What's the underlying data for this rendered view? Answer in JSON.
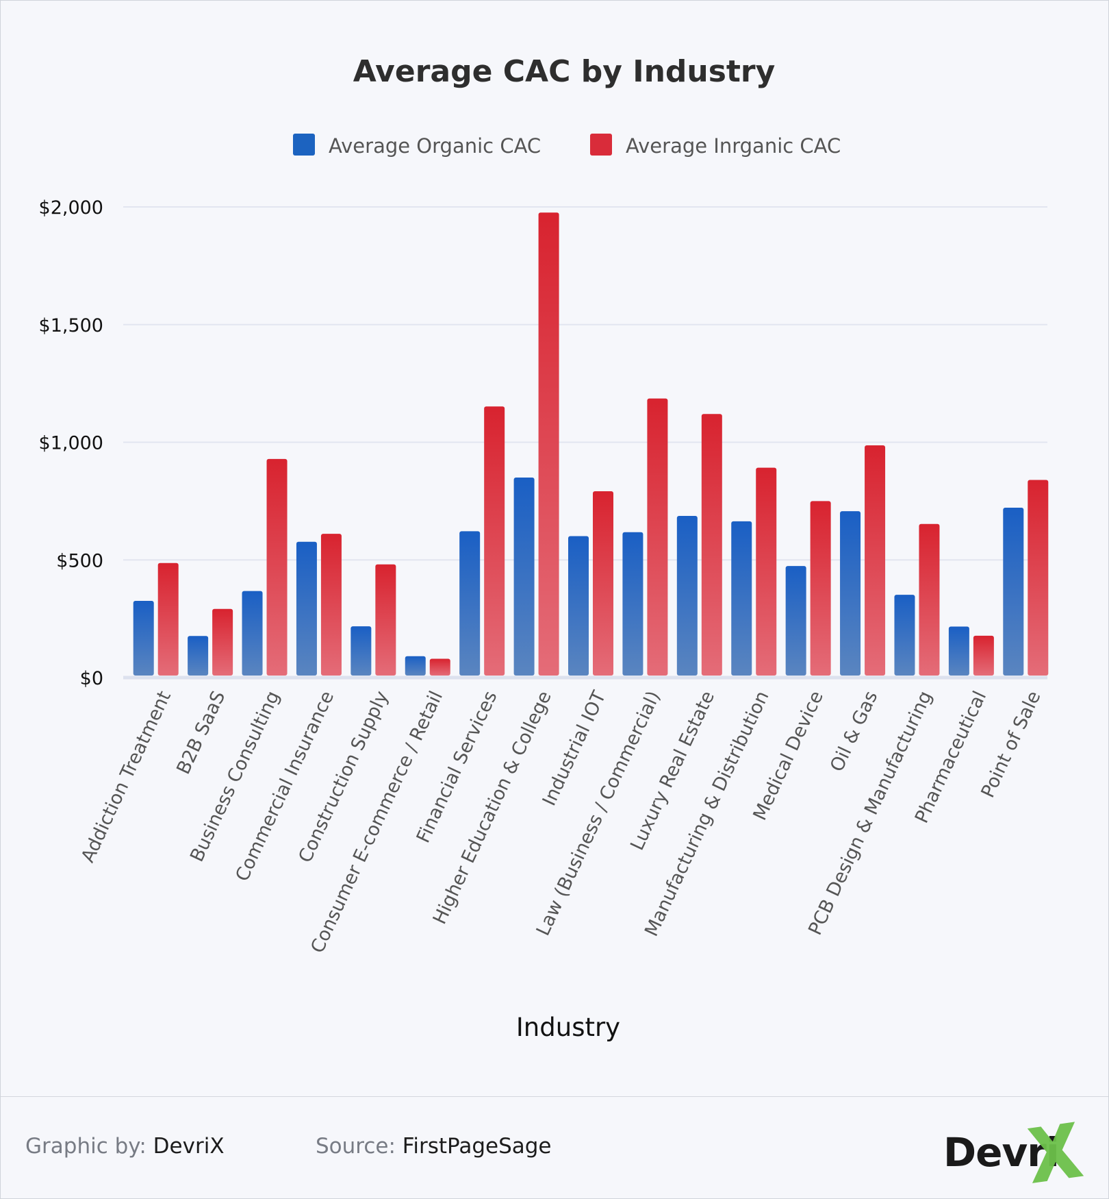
{
  "chart_data": {
    "type": "bar",
    "title": "Average CAC by Industry",
    "xlabel": "Industry",
    "ylabel": "",
    "ylim": [
      0,
      2000
    ],
    "yticks": [
      {
        "value": 0,
        "label": "$0"
      },
      {
        "value": 500,
        "label": "$500"
      },
      {
        "value": 1000,
        "label": "$1,000"
      },
      {
        "value": 1500,
        "label": "$1,500"
      },
      {
        "value": 2000,
        "label": "$2,000"
      }
    ],
    "legend_position": "top-center",
    "grid": true,
    "categories": [
      "Addiction Treatment",
      "B2B SaaS",
      "Business Consulting",
      "Commercial Insurance",
      "Construction Supply",
      "Consumer E-commerce / Retail",
      "Financial Services",
      "Higher Education & College",
      "Industrial IOT",
      "Law (Business / Commercial)",
      "Luxury Real Estate",
      "Manufacturing & Distribution",
      "Medical Device",
      "Oil & Gas",
      "PCB Design & Manufacturing",
      "Pharmaceutical",
      "Point of Sale"
    ],
    "series": [
      {
        "name": "Average Organic CAC",
        "color": "#1c63c0",
        "values": [
          326,
          177,
          368,
          577,
          218,
          91,
          622,
          850,
          601,
          618,
          687,
          664,
          474,
          707,
          352,
          217,
          722
        ]
      },
      {
        "name": "Average Inrganic CAC",
        "color": "#d92c3a",
        "values": [
          487,
          292,
          929,
          611,
          481,
          80,
          1152,
          1976,
          792,
          1186,
          1120,
          892,
          750,
          987,
          653,
          178,
          840
        ]
      }
    ]
  },
  "footer": {
    "graphic_label": "Graphic by:",
    "graphic_value": "DevriX",
    "source_label": "Source:",
    "source_value": "FirstPageSage"
  },
  "logo": {
    "text": "Devri",
    "mark": "X",
    "mark_color": "#6cc04a"
  }
}
